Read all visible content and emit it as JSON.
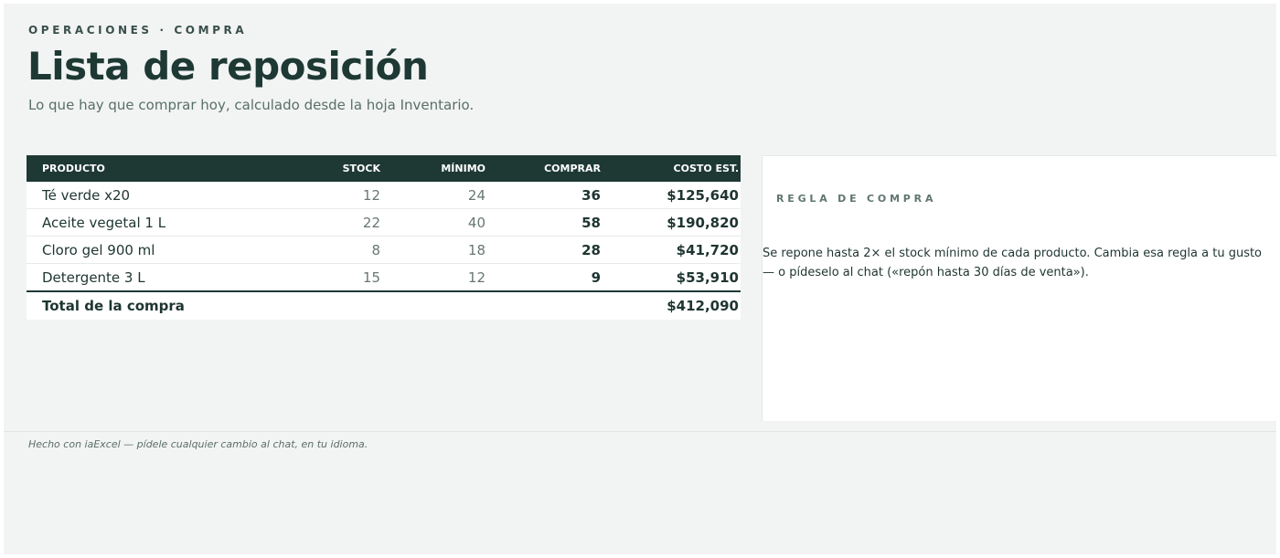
{
  "header": {
    "eyebrow": "OPERACIONES · COMPRA",
    "title": "Lista de reposición",
    "subtitle": "Lo que hay que comprar hoy, calculado desde la hoja Inventario."
  },
  "table": {
    "columns": [
      "PRODUCTO",
      "STOCK",
      "MÍNIMO",
      "COMPRAR",
      "COSTO EST."
    ],
    "rows": [
      {
        "producto": "Té verde x20",
        "stock": "12",
        "minimo": "24",
        "comprar": "36",
        "costo": "$125,640"
      },
      {
        "producto": "Aceite vegetal 1 L",
        "stock": "22",
        "minimo": "40",
        "comprar": "58",
        "costo": "$190,820"
      },
      {
        "producto": "Cloro gel 900 ml",
        "stock": "8",
        "minimo": "18",
        "comprar": "28",
        "costo": "$41,720"
      },
      {
        "producto": "Detergente 3 L",
        "stock": "15",
        "minimo": "12",
        "comprar": "9",
        "costo": "$53,910"
      }
    ],
    "total_label": "Total de la compra",
    "total_value": "$412,090"
  },
  "rule": {
    "title": "REGLA DE COMPRA",
    "text": "Se repone hasta 2× el stock mínimo de cada producto. Cambia esa regla a tu gusto — o pídeselo al chat («repón hasta 30 días de venta»)."
  },
  "footer": {
    "text": "Hecho con iaExcel — pídele cualquier cambio al chat, en tu idioma."
  },
  "colors": {
    "accent": "#1e3934",
    "background": "#f1f4f3",
    "card": "#ffffff"
  }
}
